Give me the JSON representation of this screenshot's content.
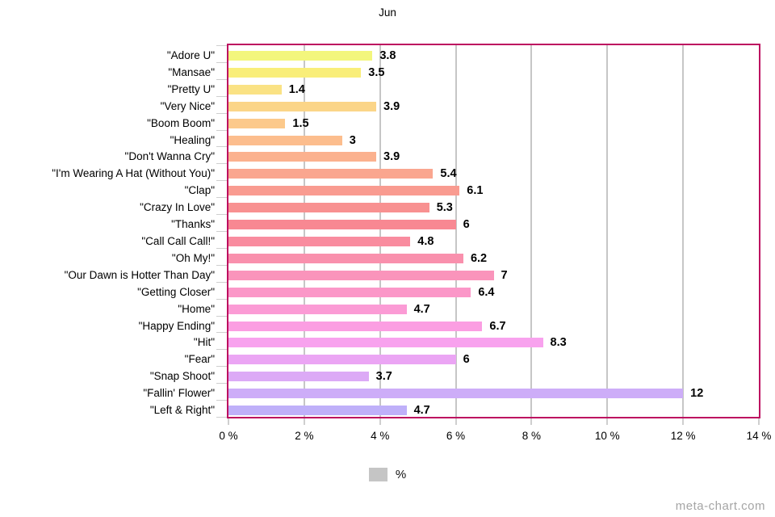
{
  "title": "Jun",
  "watermark": "meta-chart.com",
  "legend": {
    "label": "%",
    "swatch_color": "#c5c5c5"
  },
  "axis": {
    "x_tick_labels": [
      "0 %",
      "2 %",
      "4 %",
      "6 %",
      "8 %",
      "10 %",
      "12 %",
      "14 %"
    ],
    "x_tick_step": 2,
    "grid_color": "#c6c6c6",
    "plot_border_color": "#bd0e60"
  },
  "chart_data": {
    "type": "bar",
    "orientation": "horizontal",
    "title": "Jun",
    "xlabel": "%",
    "ylabel": "",
    "xlim": [
      0,
      14
    ],
    "grid": true,
    "legend_entries": [
      "%"
    ],
    "legend_position": "bottom",
    "categories": [
      "\"Adore U\"",
      "\"Mansae\"",
      "\"Pretty U\"",
      "\"Very Nice\"",
      "\"Boom Boom\"",
      "\"Healing\"",
      "\"Don't Wanna Cry\"",
      "\"I'm Wearing A Hat (Without You)\"",
      "\"Clap\"",
      "\"Crazy In Love\"",
      "\"Thanks\"",
      "\"Call Call Call!\"",
      "\"Oh My!\"",
      "\"Our Dawn is Hotter Than Day\"",
      "\"Getting Closer\"",
      "\"Home\"",
      "\"Happy Ending\"",
      "\"Hit\"",
      "\"Fear\"",
      "\"Snap Shoot\"",
      "\"Fallin' Flower\"",
      "\"Left & Right\""
    ],
    "values": [
      3.8,
      3.5,
      1.4,
      3.9,
      1.5,
      3,
      3.9,
      5.4,
      6.1,
      5.3,
      6,
      4.8,
      6.2,
      7,
      6.4,
      4.7,
      6.7,
      8.3,
      6,
      3.7,
      12,
      4.7
    ],
    "bar_colors": [
      "#f3f67d",
      "#f9ee79",
      "#fae284",
      "#fbd588",
      "#fcc98b",
      "#fcbd8d",
      "#fbb18e",
      "#faa68f",
      "#f99b90",
      "#f89191",
      "#f88892",
      "#f98c9f",
      "#f990ad",
      "#fa94bb",
      "#fb97c8",
      "#fb9bd5",
      "#fb9ee2",
      "#f8a2ee",
      "#eba5f4",
      "#dcaaf6",
      "#cdadf8",
      "#bfb0f9"
    ]
  }
}
